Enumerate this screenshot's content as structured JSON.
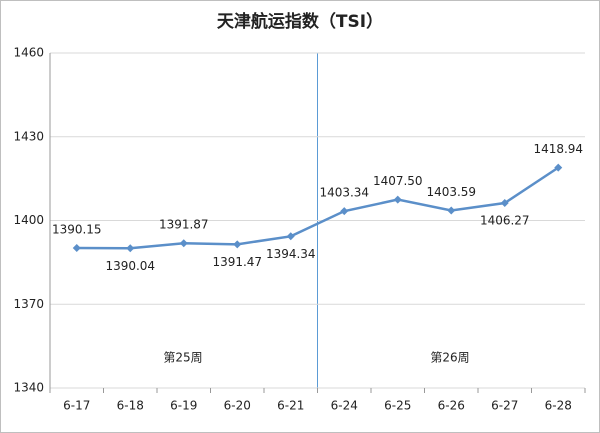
{
  "chart_data": {
    "type": "line",
    "title": "天津航运指数（TSI）",
    "categories": [
      "6-17",
      "6-18",
      "6-19",
      "6-20",
      "6-21",
      "6-24",
      "6-25",
      "6-26",
      "6-27",
      "6-28"
    ],
    "series": [
      {
        "color": "#5b8fc9",
        "values": [
          1390.15,
          1390.04,
          1391.87,
          1391.47,
          1394.34,
          1403.34,
          1407.5,
          1403.59,
          1406.27,
          1418.94
        ],
        "value_labels": [
          "1390.15",
          "1390.04",
          "1391.87",
          "1391.47",
          "1394.34",
          "1403.34",
          "1407.50",
          "1403.59",
          "1406.27",
          "1418.94"
        ]
      }
    ],
    "annotations": [
      "第25周",
      "第26周"
    ],
    "ylim": [
      1340,
      1460
    ],
    "yticks": [
      1340,
      1370,
      1400,
      1430,
      1460
    ],
    "grid": true
  }
}
